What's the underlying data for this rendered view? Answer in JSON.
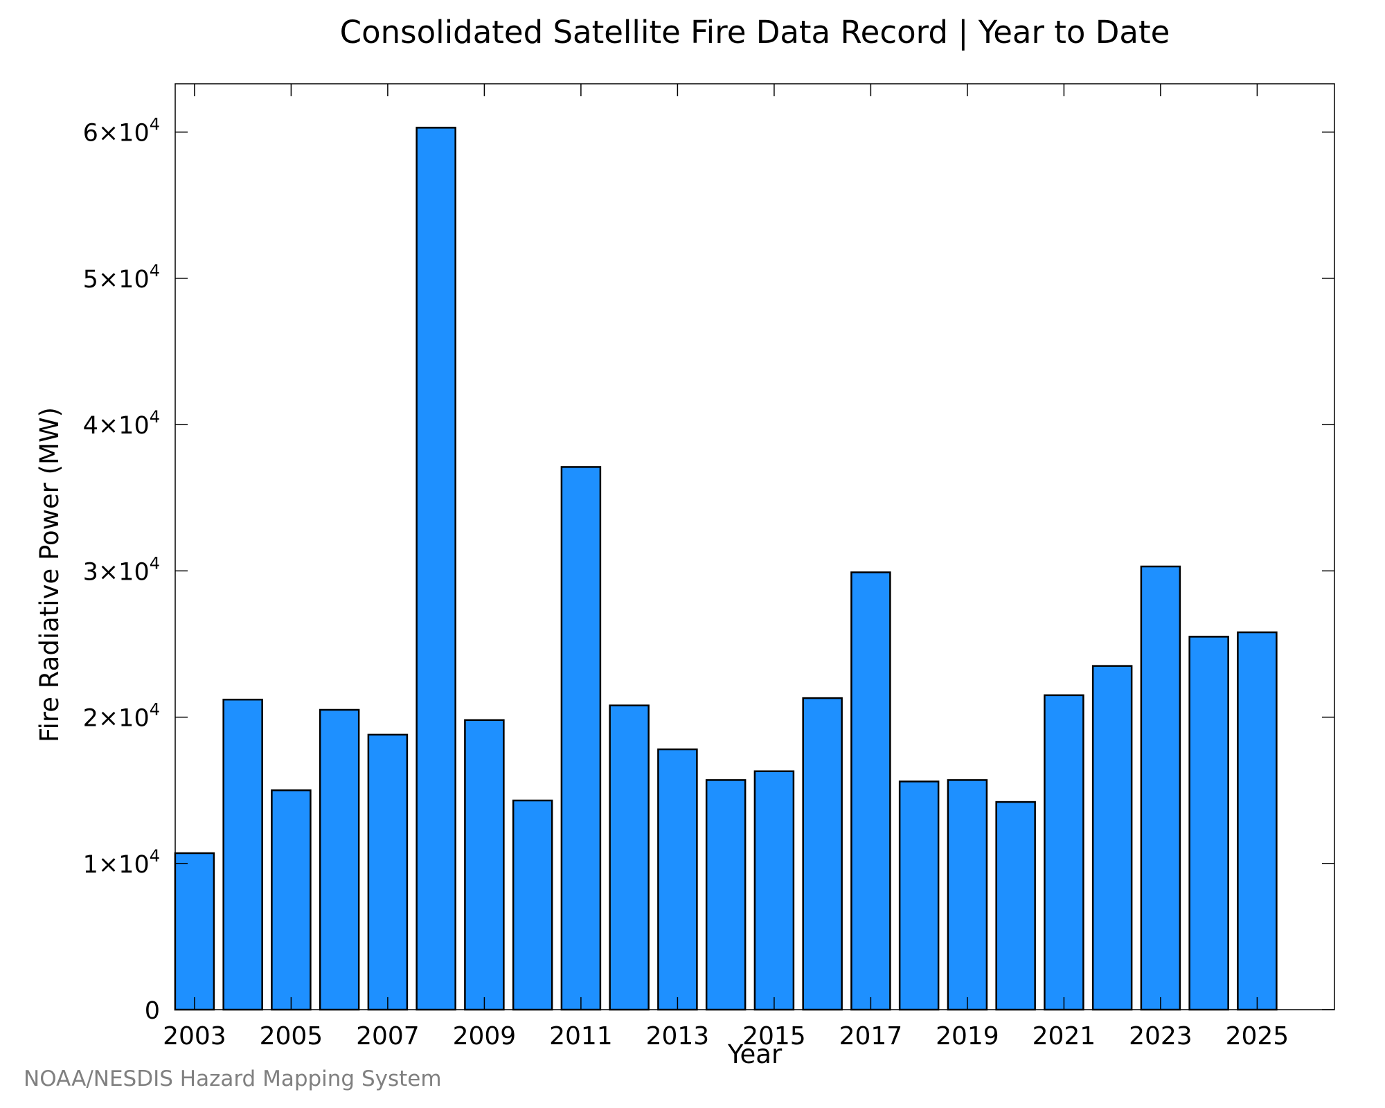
{
  "footer": "NOAA/NESDIS Hazard Mapping System",
  "chart_data": {
    "type": "bar",
    "title": "Consolidated Satellite Fire Data Record | Year to Date",
    "xlabel": "Year",
    "ylabel": "Fire Radiative Power (MW)",
    "ylim": [
      0,
      63300
    ],
    "xlim": [
      2002.6,
      2026.6
    ],
    "grid": false,
    "legend": "none",
    "bar_color": "#1e90ff",
    "bar_edge_color": "#000000",
    "categories": [
      "2003",
      "2004",
      "2005",
      "2006",
      "2007",
      "2008",
      "2009",
      "2010",
      "2011",
      "2012",
      "2013",
      "2014",
      "2015",
      "2016",
      "2017",
      "2018",
      "2019",
      "2020",
      "2021",
      "2022",
      "2023",
      "2024",
      "2025"
    ],
    "x_tick_labels": [
      "2003",
      "2005",
      "2007",
      "2009",
      "2011",
      "2013",
      "2015",
      "2017",
      "2019",
      "2021",
      "2023",
      "2025"
    ],
    "y_ticks": [
      {
        "value": 0,
        "mantissa": "0",
        "exponent": ""
      },
      {
        "value": 10000,
        "mantissa": "1×10",
        "exponent": "4"
      },
      {
        "value": 20000,
        "mantissa": "2×10",
        "exponent": "4"
      },
      {
        "value": 30000,
        "mantissa": "3×10",
        "exponent": "4"
      },
      {
        "value": 40000,
        "mantissa": "4×10",
        "exponent": "4"
      },
      {
        "value": 50000,
        "mantissa": "5×10",
        "exponent": "4"
      },
      {
        "value": 60000,
        "mantissa": "6×10",
        "exponent": "4"
      }
    ],
    "values": [
      10700,
      21200,
      15000,
      20500,
      18800,
      60300,
      19800,
      14300,
      37100,
      20800,
      17800,
      15700,
      16300,
      21300,
      29900,
      15600,
      15700,
      14200,
      21500,
      23500,
      30300,
      25500,
      25800
    ]
  }
}
